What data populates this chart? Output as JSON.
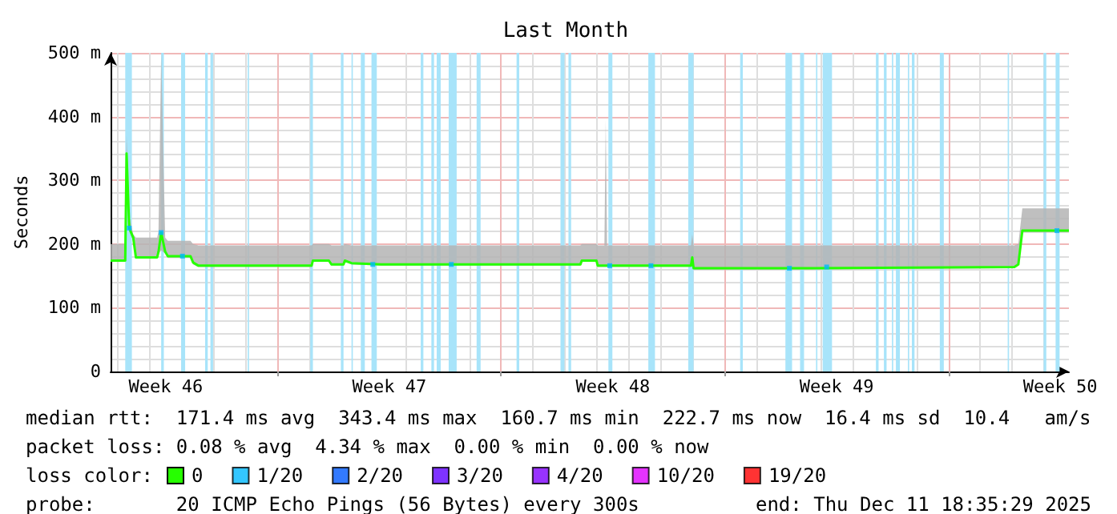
{
  "chart_data": {
    "type": "line",
    "title": "Last Month",
    "ylabel": "Seconds",
    "xlim": [
      "2025-11-11T18:35",
      "2025-12-11T18:35"
    ],
    "xticks": [
      {
        "value": "2025-11-13T12:00",
        "label": "Week 46"
      },
      {
        "value": "2025-11-17T00:00",
        "label": null
      },
      {
        "value": "2025-11-20T12:00",
        "label": "Week 47"
      },
      {
        "value": "2025-11-24T00:00",
        "label": null
      },
      {
        "value": "2025-11-27T12:00",
        "label": "Week 48"
      },
      {
        "value": "2025-12-01T00:00",
        "label": null
      },
      {
        "value": "2025-12-04T12:00",
        "label": "Week 49"
      },
      {
        "value": "2025-12-08T00:00",
        "label": null
      },
      {
        "value": "2025-12-11T12:00",
        "label": "Week 50"
      }
    ],
    "ylim": [
      0,
      500
    ],
    "yticks": [
      0,
      {
        "value": 100,
        "label": "100 m"
      },
      {
        "value": 200,
        "label": "200 m"
      },
      {
        "value": 300,
        "label": "300 m"
      },
      {
        "value": 400,
        "label": "400 m"
      },
      {
        "value": 500,
        "label": "500 m"
      }
    ],
    "grid": true,
    "legend": "bottom left",
    "legend_title": "loss color:",
    "series": [
      {
        "name": "0",
        "color": "#26ff00",
        "x": [
          "2025-11-11T18:35",
          "2025-11-12T05:35",
          "2025-11-12T06:35",
          "2025-11-12T08:35",
          "2025-11-12T11:35",
          "2025-11-12T13:35",
          "2025-11-13T05:35",
          "2025-11-13T06:35",
          "2025-11-13T08:35",
          "2025-11-13T11:35",
          "2025-11-13T13:35",
          "2025-11-14T06:35",
          "2025-11-14T08:35",
          "2025-11-14T12:35",
          "2025-11-18T01:35",
          "2025-11-18T02:35",
          "2025-11-18T14:35",
          "2025-11-18T16:35",
          "2025-11-19T01:35",
          "2025-11-19T02:35",
          "2025-11-19T07:35",
          "2025-11-20T05:35",
          "2025-11-23T10:35",
          "2025-11-26T11:35",
          "2025-11-26T12:35",
          "2025-11-26T23:35",
          "2025-11-27T00:35",
          "2025-11-27T05:35",
          "2025-11-27T06:35",
          "2025-11-27T07:35",
          "2025-11-29T22:35",
          "2025-11-29T23:35",
          "2025-11-30T00:35",
          "2025-12-03T10:35",
          "2025-12-10T01:35",
          "2025-12-10T04:35",
          "2025-12-10T07:35",
          "2025-12-11T18:35"
        ],
        "values": [
          174,
          174,
          342,
          225,
          210,
          179,
          179,
          188,
          218,
          188,
          181,
          181,
          171,
          166,
          166,
          174,
          174,
          168,
          168,
          174,
          170,
          168,
          168,
          168,
          174,
          174,
          166,
          166,
          166,
          166,
          166,
          179,
          162,
          162,
          164,
          168,
          221,
          221
        ],
        "lower": [
          174,
          174,
          330,
          220,
          205,
          177,
          177,
          185,
          190,
          185,
          178,
          178,
          168,
          164,
          164,
          172,
          172,
          166,
          166,
          172,
          168,
          166,
          166,
          166,
          172,
          172,
          164,
          164,
          164,
          164,
          164,
          170,
          160,
          160,
          162,
          166,
          218,
          218
        ],
        "upper": [
          200,
          200,
          370,
          245,
          215,
          210,
          210,
          220,
          500,
          210,
          205,
          205,
          200,
          198,
          198,
          200,
          200,
          198,
          198,
          200,
          198,
          198,
          198,
          198,
          200,
          200,
          198,
          198,
          394,
          198,
          198,
          215,
          198,
          198,
          198,
          200,
          256,
          256
        ]
      },
      {
        "name": "1/20",
        "color": "#00b8ff",
        "type": "scatter",
        "x": [
          "2025-11-12T08:35",
          "2025-11-13T08:35",
          "2025-11-14T00:35",
          "2025-11-19T23:35",
          "2025-11-22T10:35",
          "2025-11-27T09:35",
          "2025-11-28T16:35",
          "2025-12-03T00:35",
          "2025-12-04T04:35",
          "2025-12-11T09:35"
        ],
        "values": [
          225,
          218,
          181,
          168,
          168,
          166,
          166,
          162,
          164,
          221
        ]
      },
      {
        "name": "2/20",
        "color": "#0059ff",
        "type": "scatter"
      },
      {
        "name": "3/20",
        "color": "#5e00ff",
        "type": "scatter"
      },
      {
        "name": "4/20",
        "color": "#7e00ff",
        "type": "scatter"
      },
      {
        "name": "10/20",
        "color": "#dd00ff",
        "type": "scatter"
      },
      {
        "name": "19/20",
        "color": "#ff0000",
        "type": "scatter"
      }
    ],
    "bands": [
      {
        "axis": "x",
        "from": "2025-11-12T05:35",
        "to": "2025-11-12T10:35",
        "color": "#a8e4fa"
      },
      {
        "axis": "x",
        "from": "2025-11-13T08:35",
        "to": "2025-11-13T10:35",
        "color": "#a8e4fa"
      },
      {
        "axis": "x",
        "from": "2025-11-13T23:35",
        "to": "2025-11-14T02:35",
        "color": "#a8e4fa"
      },
      {
        "axis": "x",
        "from": "2025-11-14T17:35",
        "to": "2025-11-14T19:35",
        "color": "#a8e4fa"
      },
      {
        "axis": "x",
        "from": "2025-11-14T21:35",
        "to": "2025-11-14T23:35",
        "color": "#a8e4fa"
      },
      {
        "axis": "x",
        "from": "2025-11-16T01:35",
        "to": "2025-11-16T02:35",
        "color": "#a8e4fa"
      },
      {
        "axis": "x",
        "from": "2025-11-18T00:35",
        "to": "2025-11-18T02:35",
        "color": "#a8e4fa"
      },
      {
        "axis": "x",
        "from": "2025-11-18T23:35",
        "to": "2025-11-19T01:35",
        "color": "#a8e4fa"
      },
      {
        "axis": "x",
        "from": "2025-11-19T07:35",
        "to": "2025-11-19T08:35",
        "color": "#a8e4fa"
      },
      {
        "axis": "x",
        "from": "2025-11-19T14:35",
        "to": "2025-11-19T17:35",
        "color": "#a8e4fa"
      },
      {
        "axis": "x",
        "from": "2025-11-19T22:35",
        "to": "2025-11-20T02:35",
        "color": "#a8e4fa"
      },
      {
        "axis": "x",
        "from": "2025-11-21T11:35",
        "to": "2025-11-21T13:35",
        "color": "#a8e4fa"
      },
      {
        "axis": "x",
        "from": "2025-11-21T19:35",
        "to": "2025-11-21T21:35",
        "color": "#a8e4fa"
      },
      {
        "axis": "x",
        "from": "2025-11-21T23:35",
        "to": "2025-11-22T02:35",
        "color": "#a8e4fa"
      },
      {
        "axis": "x",
        "from": "2025-11-22T08:35",
        "to": "2025-11-22T14:35",
        "color": "#a8e4fa"
      },
      {
        "axis": "x",
        "from": "2025-11-23T05:35",
        "to": "2025-11-23T08:35",
        "color": "#a8e4fa"
      },
      {
        "axis": "x",
        "from": "2025-11-24T11:35",
        "to": "2025-11-24T13:35",
        "color": "#a8e4fa"
      },
      {
        "axis": "x",
        "from": "2025-11-25T20:35",
        "to": "2025-11-25T23:35",
        "color": "#a8e4fa"
      },
      {
        "axis": "x",
        "from": "2025-11-26T02:35",
        "to": "2025-11-26T04:35",
        "color": "#a8e4fa"
      },
      {
        "axis": "x",
        "from": "2025-11-27T08:35",
        "to": "2025-11-27T11:35",
        "color": "#a8e4fa"
      },
      {
        "axis": "x",
        "from": "2025-11-28T14:35",
        "to": "2025-11-28T19:35",
        "color": "#a8e4fa"
      },
      {
        "axis": "x",
        "from": "2025-11-29T20:35",
        "to": "2025-11-30T00:35",
        "color": "#a8e4fa"
      },
      {
        "axis": "x",
        "from": "2025-12-01T11:35",
        "to": "2025-12-01T13:35",
        "color": "#a8e4fa"
      },
      {
        "axis": "x",
        "from": "2025-12-02T21:35",
        "to": "2025-12-03T02:35",
        "color": "#a8e4fa"
      },
      {
        "axis": "x",
        "from": "2025-12-03T08:35",
        "to": "2025-12-03T11:35",
        "color": "#a8e4fa"
      },
      {
        "axis": "x",
        "from": "2025-12-03T20:35",
        "to": "2025-12-03T21:35",
        "color": "#a8e4fa"
      },
      {
        "axis": "x",
        "from": "2025-12-04T01:35",
        "to": "2025-12-04T08:35",
        "color": "#a8e4fa"
      },
      {
        "axis": "x",
        "from": "2025-12-05T17:35",
        "to": "2025-12-05T19:35",
        "color": "#a8e4fa"
      },
      {
        "axis": "x",
        "from": "2025-12-05T23:35",
        "to": "2025-12-06T01:35",
        "color": "#a8e4fa"
      },
      {
        "axis": "x",
        "from": "2025-12-06T05:35",
        "to": "2025-12-06T06:35",
        "color": "#a8e4fa"
      },
      {
        "axis": "x",
        "from": "2025-12-06T08:35",
        "to": "2025-12-06T11:35",
        "color": "#a8e4fa"
      },
      {
        "axis": "x",
        "from": "2025-12-06T17:35",
        "to": "2025-12-06T18:35",
        "color": "#a8e4fa"
      },
      {
        "axis": "x",
        "from": "2025-12-06T20:35",
        "to": "2025-12-06T22:35",
        "color": "#a8e4fa"
      },
      {
        "axis": "x",
        "from": "2025-12-07T17:35",
        "to": "2025-12-07T20:35",
        "color": "#a8e4fa"
      },
      {
        "axis": "x",
        "from": "2025-12-09T20:35",
        "to": "2025-12-09T21:35",
        "color": "#a8e4fa"
      },
      {
        "axis": "x",
        "from": "2025-12-10T23:35",
        "to": "2025-12-11T01:35",
        "color": "#a8e4fa"
      },
      {
        "axis": "x",
        "from": "2025-12-11T08:35",
        "to": "2025-12-11T11:35",
        "color": "#a8e4fa"
      }
    ],
    "annotations": [
      "median rtt:  171.4 ms avg  343.4 ms max  160.7 ms min  222.7 ms now  16.4 ms sd  10.4   am/s",
      "packet loss: 0.08 % avg  4.34 % max  0.00 % min  0.00 % now",
      "probe:       20 ICMP Echo Pings (56 Bytes) every 300s",
      "end: Thu Dec 11 18:35:29 2025"
    ]
  }
}
